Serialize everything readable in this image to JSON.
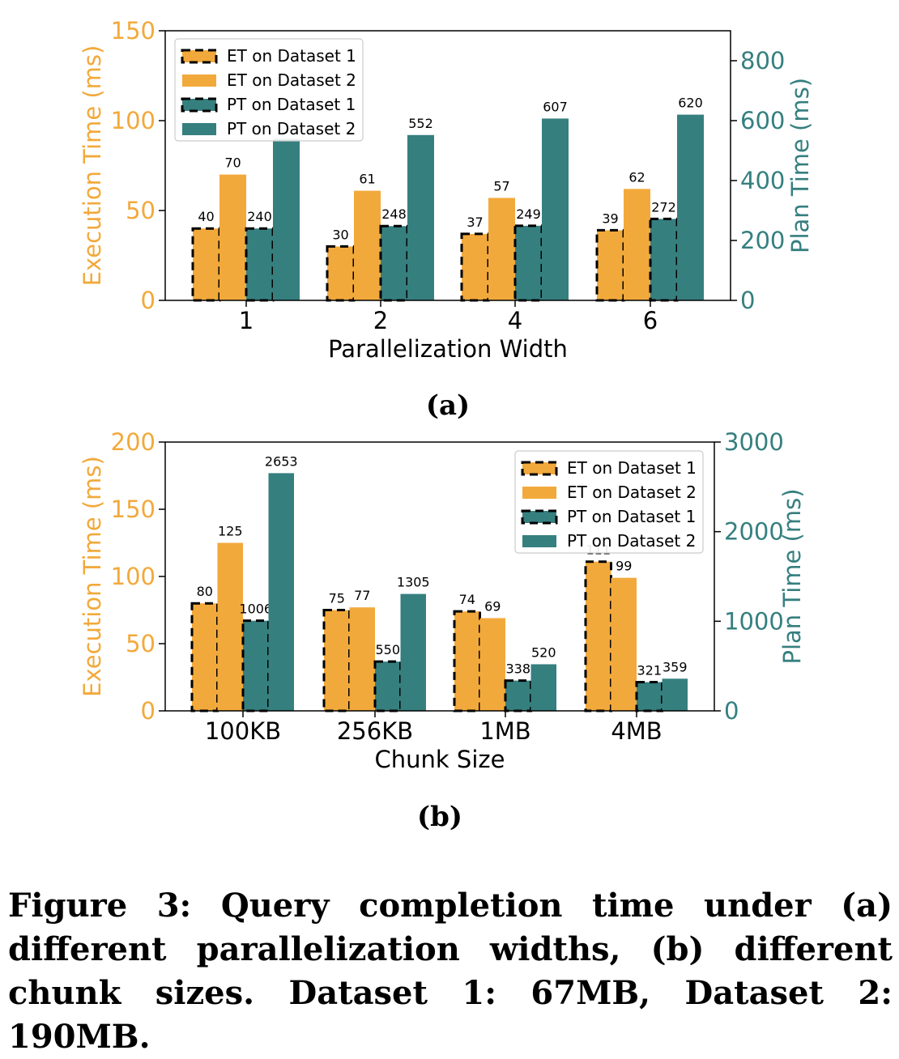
{
  "colors": {
    "et": "#f2a93b",
    "pt": "#367f7f",
    "et_axis": "#f2a93b",
    "pt_axis": "#367f7f"
  },
  "chart_data": [
    {
      "type": "bar",
      "panel_label": "(a)",
      "xlabel": "Parallelization Width",
      "ylabel_left": "Execution Time (ms)",
      "ylabel_right": "Plan Time (ms)",
      "categories": [
        "1",
        "2",
        "4",
        "6"
      ],
      "ylim_left": [
        0,
        150
      ],
      "yticks_left": [
        0,
        50,
        100,
        150
      ],
      "ylim_right": [
        0,
        900
      ],
      "yticks_right": [
        0,
        200,
        400,
        600,
        800
      ],
      "legend_position": "top-left",
      "series": [
        {
          "name": "ET on Dataset 1",
          "axis": "left",
          "style": "dashed",
          "values": [
            40,
            30,
            37,
            39
          ]
        },
        {
          "name": "ET on Dataset 2",
          "axis": "left",
          "style": "solid",
          "values": [
            70,
            61,
            57,
            62
          ]
        },
        {
          "name": "PT on Dataset 1",
          "axis": "right",
          "style": "dashed",
          "values": [
            240,
            248,
            249,
            272
          ]
        },
        {
          "name": "PT on Dataset 2",
          "axis": "right",
          "style": "solid",
          "values": [
            540,
            552,
            607,
            620
          ],
          "labels": [
            "",
            "552",
            "607",
            "620"
          ]
        }
      ]
    },
    {
      "type": "bar",
      "panel_label": "(b)",
      "xlabel": "Chunk Size",
      "ylabel_left": "Execution Time (ms)",
      "ylabel_right": "Plan Time (ms)",
      "categories": [
        "100KB",
        "256KB",
        "1MB",
        "4MB"
      ],
      "ylim_left": [
        0,
        200
      ],
      "yticks_left": [
        0,
        50,
        100,
        150,
        200
      ],
      "ylim_right": [
        0,
        3000
      ],
      "yticks_right": [
        0,
        1000,
        2000,
        3000
      ],
      "legend_position": "top-right",
      "series": [
        {
          "name": "ET on Dataset 1",
          "axis": "left",
          "style": "dashed",
          "values": [
            80,
            75,
            74,
            111
          ]
        },
        {
          "name": "ET on Dataset 2",
          "axis": "left",
          "style": "solid",
          "values": [
            125,
            77,
            69,
            99
          ]
        },
        {
          "name": "PT on Dataset 1",
          "axis": "right",
          "style": "dashed",
          "values": [
            1006,
            550,
            338,
            321
          ]
        },
        {
          "name": "PT on Dataset 2",
          "axis": "right",
          "style": "solid",
          "values": [
            2653,
            1305,
            520,
            359
          ]
        }
      ]
    }
  ],
  "caption": "Figure 3: Query completion time under (a) different parallelization widths, (b) different chunk sizes. Dataset 1: 67MB, Dataset 2: 190MB."
}
